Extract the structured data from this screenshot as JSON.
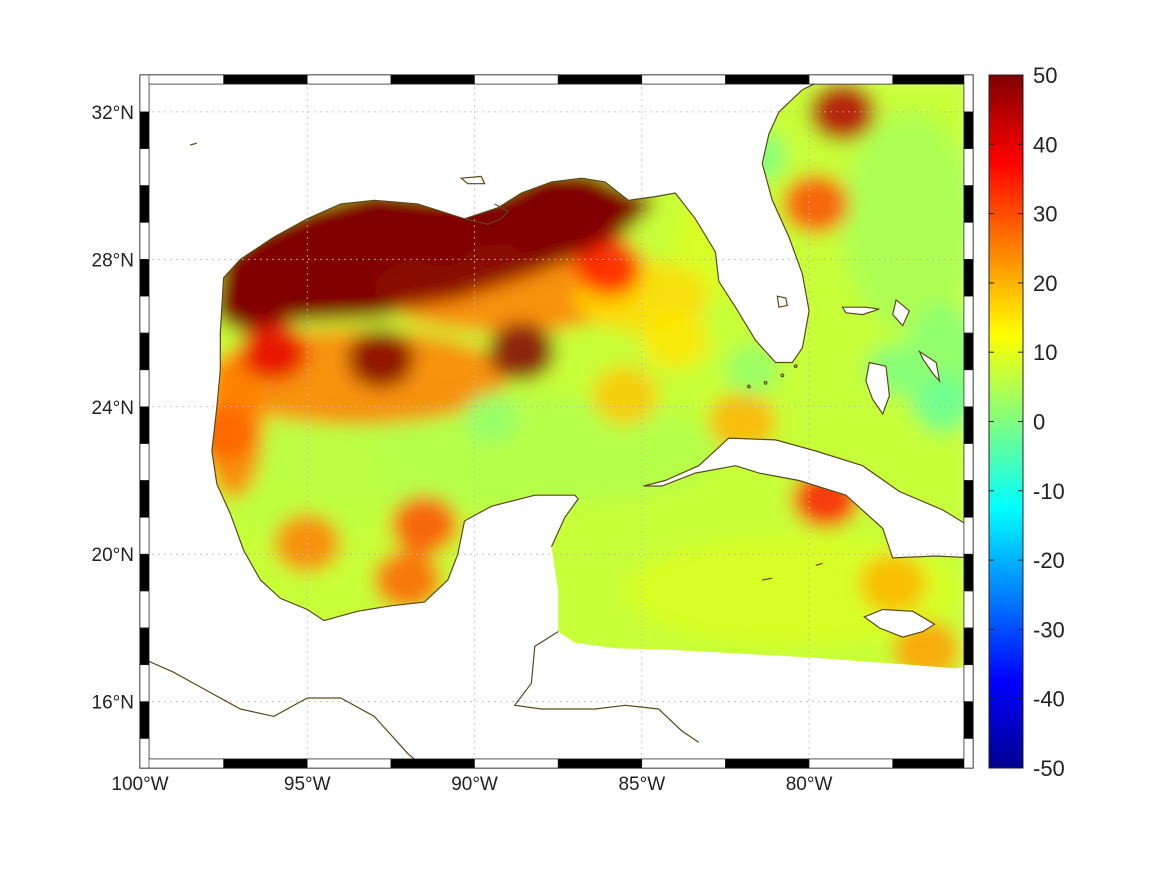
{
  "chart_data": {
    "type": "heatmap",
    "title": "",
    "xlabel": "",
    "ylabel": "",
    "projection": "lon-lat map",
    "lon_range": [
      -100,
      -75.1
    ],
    "lat_range": [
      14.2,
      33
    ],
    "x_ticks": [
      {
        "value": -100,
        "label": "100°W"
      },
      {
        "value": -95,
        "label": "95°W"
      },
      {
        "value": -90,
        "label": "90°W"
      },
      {
        "value": -85,
        "label": "85°W"
      },
      {
        "value": -80,
        "label": "80°W"
      }
    ],
    "y_ticks": [
      {
        "value": 16,
        "label": "16°N"
      },
      {
        "value": 20,
        "label": "20°N"
      },
      {
        "value": 24,
        "label": "24°N"
      },
      {
        "value": 28,
        "label": "28°N"
      },
      {
        "value": 32,
        "label": "32°N"
      }
    ],
    "colorbar": {
      "colormap": "jet",
      "range": [
        -50,
        50
      ],
      "ticks": [
        "50",
        "40",
        "30",
        "20",
        "10",
        "0",
        "-10",
        "-20",
        "-30",
        "-40",
        "-50"
      ],
      "tick_values": [
        50,
        40,
        30,
        20,
        10,
        0,
        -10,
        -20,
        -30,
        -40,
        -50
      ],
      "colors": [
        "#00008f",
        "#0000ff",
        "#0080ff",
        "#00ffff",
        "#80ff80",
        "#ffff00",
        "#ff8000",
        "#ff0000",
        "#800000"
      ]
    },
    "grid": true,
    "coastline_color": "#5a4a1a",
    "field_background_value": 7,
    "field_hotspots": [
      {
        "lon": -95.5,
        "lat": 27.9,
        "value": 70,
        "note": "saturated northern Gulf shelf"
      },
      {
        "lon": -91.0,
        "lat": 28.6,
        "value": 70
      },
      {
        "lon": -88.0,
        "lat": 28.8,
        "value": 65
      },
      {
        "lon": -92.8,
        "lat": 25.3,
        "value": 55
      },
      {
        "lon": -88.6,
        "lat": 25.5,
        "value": 50
      },
      {
        "lon": -96.0,
        "lat": 25.5,
        "value": 40
      },
      {
        "lon": -97.5,
        "lat": 23.3,
        "value": 28
      },
      {
        "lon": -86.0,
        "lat": 27.8,
        "value": 35
      },
      {
        "lon": -85.5,
        "lat": 24.3,
        "value": 18
      },
      {
        "lon": -91.5,
        "lat": 20.8,
        "value": 30
      },
      {
        "lon": -92.0,
        "lat": 19.3,
        "value": 28
      },
      {
        "lon": -95.0,
        "lat": 20.3,
        "value": 25
      },
      {
        "lon": -79.0,
        "lat": 32.0,
        "value": 45
      },
      {
        "lon": -79.8,
        "lat": 29.5,
        "value": 30
      },
      {
        "lon": -79.5,
        "lat": 21.5,
        "value": 35
      },
      {
        "lon": -82.0,
        "lat": 23.6,
        "value": 20
      },
      {
        "lon": -76.5,
        "lat": 17.4,
        "value": 22
      },
      {
        "lon": -77.5,
        "lat": 19.2,
        "value": 20
      },
      {
        "lon": -84.0,
        "lat": 25.8,
        "value": 15
      }
    ],
    "field_coldspots": [
      {
        "lon": -81.5,
        "lat": 30.8,
        "value": 0
      },
      {
        "lon": -77.5,
        "lat": 25.0,
        "value": 0
      },
      {
        "lon": -76.0,
        "lat": 24.2,
        "value": -2
      },
      {
        "lon": -89.5,
        "lat": 23.7,
        "value": 2
      },
      {
        "lon": -81.7,
        "lat": 25.0,
        "value": 2
      }
    ]
  }
}
